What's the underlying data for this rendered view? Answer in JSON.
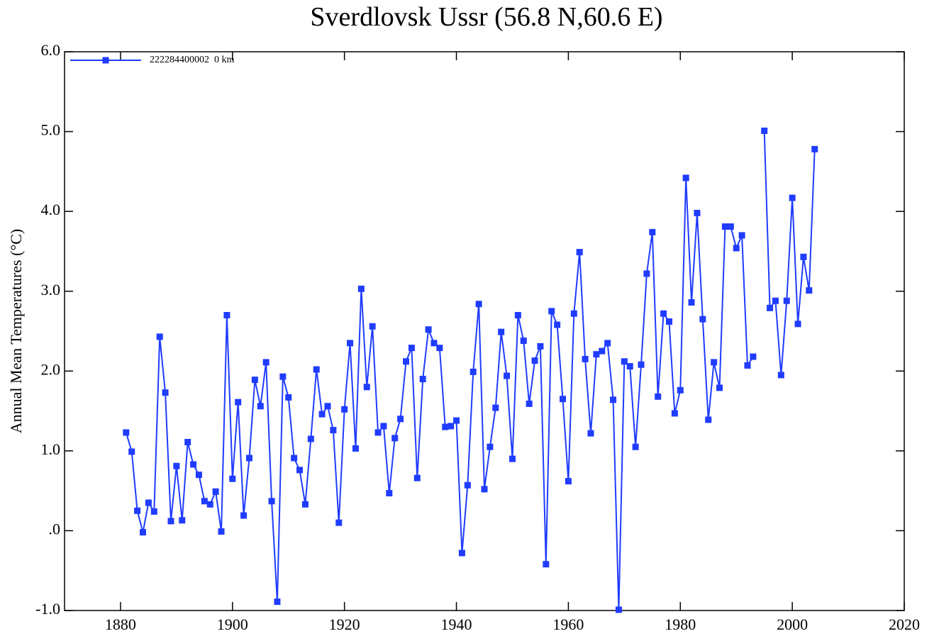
{
  "chart_data": {
    "type": "line",
    "title": "Sverdlovsk Ussr (56.8 N,60.6 E)",
    "ylabel": "Annual Mean Temperatures (°C)",
    "xlim": [
      1870,
      2020
    ],
    "xticks": [
      1880,
      1900,
      1920,
      1940,
      1960,
      1980,
      2000,
      2020
    ],
    "ylim": [
      -1,
      6
    ],
    "yticks": [
      {
        "value": -1,
        "label": "-1.0"
      },
      {
        "value": 0,
        "label": ".0"
      },
      {
        "value": 1,
        "label": "1.0"
      },
      {
        "value": 2,
        "label": "2.0"
      },
      {
        "value": 3,
        "label": "3.0"
      },
      {
        "value": 4,
        "label": "4.0"
      },
      {
        "value": 5,
        "label": "5.0"
      },
      {
        "value": 6,
        "label": "6.0"
      }
    ],
    "legend": "upper left",
    "x": [
      1881,
      1882,
      1883,
      1884,
      1885,
      1886,
      1887,
      1888,
      1889,
      1890,
      1891,
      1892,
      1893,
      1894,
      1895,
      1896,
      1897,
      1898,
      1899,
      1900,
      1901,
      1902,
      1903,
      1904,
      1905,
      1906,
      1907,
      1908,
      1909,
      1910,
      1911,
      1912,
      1913,
      1914,
      1915,
      1916,
      1917,
      1918,
      1919,
      1920,
      1921,
      1922,
      1923,
      1924,
      1925,
      1926,
      1927,
      1928,
      1929,
      1930,
      1931,
      1932,
      1933,
      1934,
      1935,
      1936,
      1937,
      1938,
      1939,
      1940,
      1941,
      1942,
      1943,
      1944,
      1945,
      1946,
      1947,
      1948,
      1949,
      1950,
      1951,
      1952,
      1953,
      1954,
      1955,
      1956,
      1957,
      1958,
      1959,
      1960,
      1961,
      1962,
      1963,
      1964,
      1965,
      1966,
      1967,
      1968,
      1969,
      1970,
      1971,
      1972,
      1973,
      1974,
      1975,
      1976,
      1977,
      1978,
      1979,
      1980,
      1981,
      1982,
      1983,
      1984,
      1985,
      1986,
      1987,
      1988,
      1989,
      1990,
      1991,
      1992,
      1993,
      1994,
      1995,
      1996,
      1997,
      1998,
      1999,
      2000,
      2001,
      2002,
      2003,
      2004
    ],
    "series": [
      {
        "name": "222284400002  0 km",
        "color": "#1f3cff",
        "values": [
          1.23,
          0.99,
          0.25,
          -0.02,
          0.35,
          0.24,
          2.43,
          1.73,
          0.12,
          0.81,
          0.13,
          1.11,
          0.83,
          0.7,
          0.37,
          0.33,
          0.49,
          -0.01,
          2.7,
          0.65,
          1.61,
          0.19,
          0.91,
          1.89,
          1.56,
          2.11,
          0.37,
          -0.89,
          1.93,
          1.67,
          0.91,
          0.76,
          0.33,
          1.15,
          2.02,
          1.46,
          1.56,
          1.26,
          0.1,
          1.52,
          2.35,
          1.03,
          3.03,
          1.8,
          2.56,
          1.23,
          1.31,
          0.47,
          1.16,
          1.4,
          2.12,
          2.29,
          0.66,
          1.9,
          2.52,
          2.35,
          2.29,
          1.3,
          1.31,
          1.38,
          -0.28,
          0.57,
          1.99,
          2.84,
          0.52,
          1.05,
          1.54,
          2.49,
          1.94,
          0.9,
          2.7,
          2.38,
          1.59,
          2.13,
          2.31,
          -0.42,
          2.75,
          2.58,
          1.65,
          0.62,
          2.72,
          3.49,
          2.15,
          1.22,
          2.21,
          2.25,
          2.35,
          1.64,
          -0.99,
          2.12,
          2.06,
          1.05,
          2.08,
          3.22,
          3.74,
          1.68,
          2.72,
          2.62,
          1.47,
          1.76,
          4.42,
          2.86,
          3.98,
          2.65,
          1.39,
          2.11,
          1.79,
          3.81,
          3.81,
          3.54,
          3.7,
          2.07,
          2.18,
          null,
          5.01,
          2.79,
          2.88,
          1.95,
          2.88,
          4.17,
          2.59,
          3.43,
          3.01,
          4.78
        ]
      }
    ]
  }
}
